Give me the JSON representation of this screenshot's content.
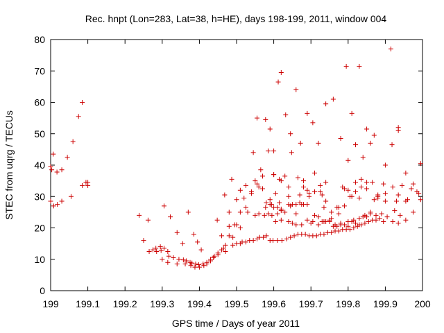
{
  "chart_data": {
    "type": "scatter",
    "title": "Rec. hnpt (Lon=283, Lat=38, h=HE), days 198-199, 2011, window 004",
    "xlabel": "GPS time / Days of year 2011",
    "ylabel": "STEC from uqrg / TECUs",
    "xlim": [
      199,
      200
    ],
    "ylim": [
      0,
      80
    ],
    "xticks": [
      "199",
      "199.1",
      "199.2",
      "199.3",
      "199.4",
      "199.5",
      "199.6",
      "199.7",
      "199.8",
      "199.9",
      "200"
    ],
    "yticks": [
      "0",
      "10",
      "20",
      "30",
      "40",
      "50",
      "60",
      "70",
      "80"
    ],
    "grid": false,
    "marker": "plus",
    "color": "#cc0000",
    "series": [
      {
        "x": [
          199.0,
          199.003,
          199.007,
          199.017,
          199.03,
          199.045,
          199.06,
          199.075,
          199.085,
          199.095,
          199.1,
          199.0,
          199.008,
          199.018,
          199.03,
          199.055,
          199.085,
          199.1,
          199.238,
          199.25,
          199.262,
          199.265,
          199.275,
          199.283,
          199.295,
          199.305,
          199.315,
          199.322,
          199.34,
          199.355,
          199.37,
          199.385,
          199.395,
          199.405,
          199.285,
          199.297,
          199.305,
          199.318,
          199.33,
          199.345,
          199.357,
          199.365,
          199.375,
          199.38,
          199.39,
          199.398,
          199.41,
          199.42,
          199.43,
          199.44,
          199.3,
          199.315,
          199.34,
          199.362,
          199.377,
          199.388,
          199.4,
          199.412,
          199.42,
          199.43,
          199.438,
          199.45,
          199.46,
          199.47,
          199.448,
          199.46,
          199.468,
          199.48,
          199.487,
          199.5,
          199.51,
          199.525,
          199.545,
          199.555,
          199.565,
          199.578,
          199.59,
          199.6,
          199.612,
          199.62,
          199.632,
          199.645,
          199.66,
          199.672,
          199.69,
          199.705,
          199.72,
          199.74,
          199.76,
          199.78,
          199.795,
          199.81,
          199.83,
          199.85,
          199.87,
          199.895,
          199.915,
          199.935,
          199.45,
          199.465,
          199.48,
          199.495,
          199.51,
          199.525,
          199.54,
          199.555,
          199.57,
          199.585,
          199.6,
          199.615,
          199.63,
          199.648,
          199.665,
          199.68,
          199.695,
          199.71,
          199.725,
          199.74,
          199.755,
          199.77,
          199.785,
          199.8,
          199.82,
          199.84,
          199.86,
          199.88,
          199.9,
          199.918,
          199.935,
          199.955,
          199.975,
          199.995,
          199.47,
          199.48,
          199.49,
          199.5,
          199.51,
          199.52,
          199.53,
          199.54,
          199.55,
          199.56,
          199.57,
          199.58,
          199.59,
          199.6,
          199.61,
          199.62,
          199.63,
          199.64,
          199.65,
          199.66,
          199.67,
          199.68,
          199.69,
          199.7,
          199.71,
          199.72,
          199.73,
          199.74,
          199.75,
          199.76,
          199.77,
          199.78,
          199.79,
          199.8,
          199.81,
          199.82,
          199.83,
          199.84,
          199.85,
          199.86,
          199.49,
          199.5,
          199.51,
          199.515,
          199.525,
          199.535,
          199.545,
          199.555,
          199.562,
          199.572,
          199.58,
          199.59,
          199.598,
          199.61,
          199.622,
          199.635,
          199.645,
          199.655,
          199.665,
          199.675,
          199.685,
          199.695,
          199.705,
          199.715,
          199.725,
          199.735,
          199.745,
          199.755,
          199.765,
          199.775,
          199.785,
          199.795,
          199.805,
          199.815,
          199.825,
          199.835,
          199.845,
          199.855,
          199.865,
          199.875,
          199.885,
          199.895,
          199.55,
          199.56,
          199.575,
          199.585,
          199.595,
          199.605,
          199.62,
          199.64,
          199.65,
          199.66,
          199.675,
          199.69,
          199.705,
          199.72,
          199.735,
          199.75,
          199.765,
          199.78,
          199.8,
          199.815,
          199.83,
          199.845,
          199.86,
          199.875,
          199.89,
          199.905,
          199.92,
          199.935,
          199.955,
          199.975,
          199.995,
          199.578,
          199.594,
          199.61,
          199.62,
          199.645,
          199.66,
          199.675,
          199.69,
          199.71,
          199.725,
          199.74,
          199.755,
          199.775,
          199.79,
          199.805,
          199.82,
          199.835,
          199.85,
          199.865,
          199.88,
          199.9,
          199.925,
          199.94,
          199.955,
          199.97,
          199.99,
          199.59,
          199.605,
          199.615,
          199.64,
          199.67,
          199.695,
          199.735,
          199.775,
          199.8,
          199.82,
          199.835,
          199.88,
          199.92,
          199.93,
          199.945,
          199.6,
          199.62,
          199.64,
          199.68,
          199.71,
          199.73,
          199.79,
          199.81,
          199.83,
          199.85,
          199.87,
          199.9,
          199.935,
          199.96,
          199.985
        ],
        "y": [
          39.5,
          38.5,
          43.5,
          37.8,
          38.5,
          42.5,
          47.5,
          55.5,
          60.0,
          34.5,
          33.5,
          28.5,
          27.0,
          27.5,
          28.5,
          30.0,
          33.5,
          34.5,
          24.0,
          16.0,
          22.5,
          12.5,
          13.0,
          13.5,
          14.0,
          27.0,
          12.5,
          23.5,
          18.5,
          15.0,
          25.0,
          18.0,
          15.5,
          13.0,
          12.5,
          12.8,
          13.5,
          11.0,
          10.5,
          10.0,
          9.8,
          9.5,
          9.0,
          8.8,
          8.5,
          8.3,
          8.5,
          9.0,
          10.0,
          11.0,
          10.0,
          9.0,
          8.5,
          8.5,
          8.0,
          7.5,
          7.5,
          8.0,
          8.5,
          9.5,
          10.5,
          11.5,
          13.0,
          14.5,
          22.5,
          17.5,
          30.5,
          25.0,
          35.5,
          29.0,
          32.0,
          33.5,
          44.0,
          55.0,
          38.5,
          54.5,
          51.5,
          37.0,
          66.5,
          69.5,
          56.0,
          50.0,
          64.0,
          47.0,
          56.5,
          53.5,
          47.0,
          59.5,
          61.0,
          48.5,
          71.5,
          56.5,
          71.5,
          51.5,
          49.5,
          34.0,
          77.0,
          52.0,
          12.0,
          13.5,
          17.5,
          21.0,
          25.0,
          26.5,
          31.5,
          34.0,
          36.5,
          44.5,
          44.5,
          35.5,
          36.5,
          44.0,
          36.0,
          33.0,
          30.0,
          37.5,
          33.5,
          28.5,
          25.0,
          26.5,
          33.0,
          41.5,
          46.5,
          42.5,
          47.0,
          30.0,
          40.0,
          46.5,
          51.0,
          37.5,
          34.0,
          40.5,
          12.5,
          20.5,
          17.0,
          21.0,
          20.0,
          29.5,
          25.0,
          31.0,
          35.0,
          33.0,
          32.5,
          28.0,
          27.5,
          26.5,
          26.5,
          25.5,
          25.0,
          27.5,
          27.5,
          24.5,
          28.0,
          27.5,
          27.5,
          21.5,
          24.0,
          23.5,
          22.0,
          22.0,
          22.5,
          20.5,
          20.5,
          21.5,
          21.0,
          20.5,
          22.0,
          21.5,
          21.0,
          23.5,
          23.5,
          24.5,
          14.5,
          15.0,
          15.0,
          15.5,
          15.5,
          16.0,
          16.0,
          16.5,
          17.0,
          17.0,
          17.5,
          16.0,
          16.0,
          16.0,
          16.0,
          16.5,
          17.0,
          17.5,
          18.0,
          18.0,
          18.0,
          17.5,
          17.5,
          17.5,
          18.0,
          18.0,
          18.5,
          18.5,
          19.0,
          19.0,
          19.5,
          19.5,
          19.5,
          20.0,
          20.5,
          21.0,
          21.5,
          22.0,
          22.5,
          22.5,
          23.0,
          22.0,
          24.0,
          24.5,
          24.0,
          24.5,
          24.0,
          22.0,
          22.5,
          22.0,
          21.5,
          21.0,
          21.0,
          22.5,
          22.0,
          21.0,
          22.0,
          22.0,
          21.0,
          21.0,
          22.0,
          22.5,
          23.0,
          24.0,
          25.0,
          24.0,
          24.5,
          23.5,
          22.0,
          21.5,
          22.5,
          25.0,
          29.0,
          26.5,
          27.5,
          24.5,
          26.0,
          27.0,
          27.5,
          27.5,
          32.0,
          31.5,
          31.5,
          34.5,
          23.0,
          24.5,
          27.0,
          30.0,
          31.5,
          33.0,
          34.5,
          34.5,
          29.5,
          28.5,
          25.5,
          24.0,
          28.5,
          32.5,
          31.0,
          29.0,
          31.0,
          28.0,
          30.0,
          30.5,
          31.0,
          26.5,
          26.5,
          32.0,
          34.5,
          35.5,
          30.5,
          33.0,
          28.5,
          33.5,
          37.0,
          35.0,
          33.0,
          35.0,
          31.5,
          30.5,
          32.5,
          30.0,
          29.5,
          32.5,
          29.0,
          31.0,
          30.5,
          29.0,
          31.5
        ]
      }
    ]
  }
}
